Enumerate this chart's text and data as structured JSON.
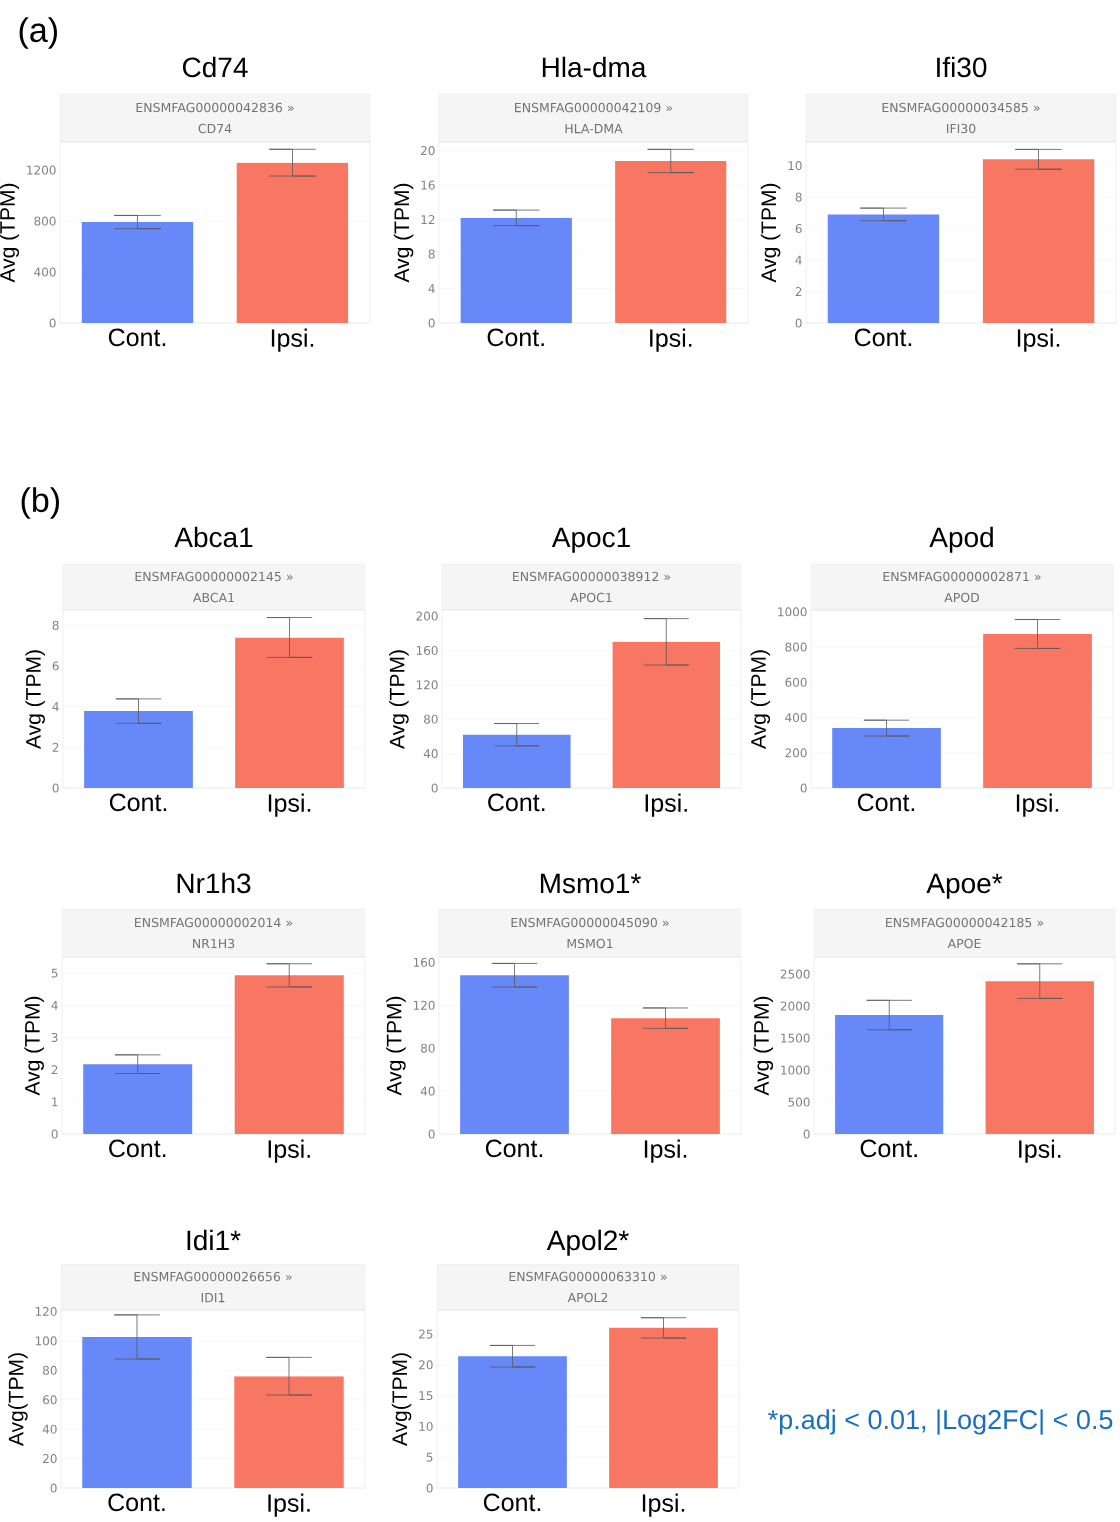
{
  "chart_data": [
    {
      "type": "bar",
      "title": "Cd74",
      "subtitle": "ENSMFAG00000042836 » CD74",
      "ylabel": "Avg (TPM)",
      "categories": [
        "Cont.",
        "Ipsi."
      ],
      "values": [
        792,
        1258
      ],
      "errors": [
        52,
        105
      ],
      "colors": [
        "#6688f8",
        "#f87763"
      ],
      "ylim": [
        0,
        1420
      ],
      "yticks": [
        0,
        400,
        800,
        1200
      ],
      "grid": "y",
      "annotations": [
        "(a)"
      ]
    },
    {
      "type": "bar",
      "title": "Hla-dma",
      "subtitle": "ENSMFAG00000042109 » HLA-DMA",
      "ylabel": "Avg (TPM)",
      "categories": [
        "Cont.",
        "Ipsi."
      ],
      "values": [
        12.2,
        18.8
      ],
      "errors": [
        0.9,
        1.35
      ],
      "colors": [
        "#6688f8",
        "#f87763"
      ],
      "ylim": [
        0,
        21
      ],
      "yticks": [
        0,
        4,
        8,
        12,
        16,
        20
      ],
      "grid": "y"
    },
    {
      "type": "bar",
      "title": "Ifi30",
      "subtitle": "ENSMFAG00000034585 » IFI30",
      "ylabel": "Avg (TPM)",
      "categories": [
        "Cont.",
        "Ipsi."
      ],
      "values": [
        6.9,
        10.4
      ],
      "errors": [
        0.4,
        0.63
      ],
      "colors": [
        "#6688f8",
        "#f87763"
      ],
      "ylim": [
        0,
        11.5
      ],
      "yticks": [
        0,
        2,
        4,
        6,
        8,
        10
      ],
      "grid": "y"
    },
    {
      "type": "bar",
      "title": "Abca1",
      "subtitle": "ENSMFAG00000002145 » ABCA1",
      "ylabel": "Avg (TPM)",
      "categories": [
        "Cont.",
        "Ipsi."
      ],
      "values": [
        3.78,
        7.4
      ],
      "errors": [
        0.6,
        0.98
      ],
      "colors": [
        "#6688f8",
        "#f87763"
      ],
      "ylim": [
        0,
        8.75
      ],
      "yticks": [
        0,
        2,
        4,
        6,
        8
      ],
      "grid": "y",
      "annotations": [
        "(b)"
      ]
    },
    {
      "type": "bar",
      "title": "Apoc1",
      "subtitle": "ENSMFAG00000038912 » APOC1",
      "ylabel": "Avg (TPM)",
      "categories": [
        "Cont.",
        "Ipsi."
      ],
      "values": [
        62,
        170
      ],
      "errors": [
        13,
        27
      ],
      "colors": [
        "#6688f8",
        "#f87763"
      ],
      "ylim": [
        0,
        207
      ],
      "yticks": [
        0,
        40,
        80,
        120,
        160,
        200
      ],
      "grid": "y"
    },
    {
      "type": "bar",
      "title": "Apod",
      "subtitle": "ENSMFAG00000002871 » APOD",
      "ylabel": "Avg (TPM)",
      "categories": [
        "Cont.",
        "Ipsi."
      ],
      "values": [
        340,
        874
      ],
      "errors": [
        45,
        82
      ],
      "colors": [
        "#6688f8",
        "#f87763"
      ],
      "ylim": [
        0,
        1010
      ],
      "yticks": [
        0,
        200,
        400,
        600,
        800,
        1000
      ],
      "grid": "y"
    },
    {
      "type": "bar",
      "title": "Nr1h3",
      "subtitle": "ENSMFAG00000002014 » NR1H3",
      "ylabel": "Avg (TPM)",
      "categories": [
        "Cont.",
        "Ipsi."
      ],
      "values": [
        2.17,
        4.93
      ],
      "errors": [
        0.29,
        0.36
      ],
      "colors": [
        "#6688f8",
        "#f87763"
      ],
      "ylim": [
        0,
        5.5
      ],
      "yticks": [
        0,
        1,
        2,
        3,
        4,
        5
      ],
      "grid": "y"
    },
    {
      "type": "bar",
      "title": "Msmo1*",
      "subtitle": "ENSMFAG00000045090 » MSMO1",
      "ylabel": "Avg (TPM)",
      "categories": [
        "Cont.",
        "Ipsi."
      ],
      "values": [
        148,
        108
      ],
      "errors": [
        11,
        9.5
      ],
      "colors": [
        "#6688f8",
        "#f87763"
      ],
      "ylim": [
        0,
        165
      ],
      "yticks": [
        0,
        40,
        80,
        120,
        160
      ],
      "grid": "y"
    },
    {
      "type": "bar",
      "title": "Apoe*",
      "subtitle": "ENSMFAG00000042185 » APOE",
      "ylabel": "Avg (TPM)",
      "categories": [
        "Cont.",
        "Ipsi."
      ],
      "values": [
        1860,
        2390
      ],
      "errors": [
        230,
        270
      ],
      "colors": [
        "#6688f8",
        "#f87763"
      ],
      "ylim": [
        0,
        2767
      ],
      "yticks": [
        0,
        500,
        1000,
        1500,
        2000,
        2500
      ],
      "grid": "y"
    },
    {
      "type": "bar",
      "title": "Idi1*",
      "subtitle": "ENSMFAG00000026656 » IDI1",
      "ylabel": "Avg(TPM)",
      "categories": [
        "Cont.",
        "Ipsi."
      ],
      "values": [
        102.7,
        76
      ],
      "errors": [
        15,
        12.8
      ],
      "colors": [
        "#6688f8",
        "#f87763"
      ],
      "ylim": [
        0,
        121
      ],
      "yticks": [
        0,
        20,
        40,
        60,
        80,
        100,
        120
      ],
      "grid": "y"
    },
    {
      "type": "bar",
      "title": "Apol2*",
      "subtitle": "ENSMFAG00000063310 » APOL2",
      "ylabel": "Avg(TPM)",
      "categories": [
        "Cont.",
        "Ipsi."
      ],
      "values": [
        21.4,
        26.0
      ],
      "errors": [
        1.75,
        1.65
      ],
      "colors": [
        "#6688f8",
        "#f87763"
      ],
      "ylim": [
        0,
        28.9
      ],
      "yticks": [
        0,
        5,
        10,
        15,
        20,
        25
      ],
      "grid": "y",
      "annotations": [
        "*p.adj < 0.01, |Log2FC| < 0.5"
      ]
    }
  ]
}
